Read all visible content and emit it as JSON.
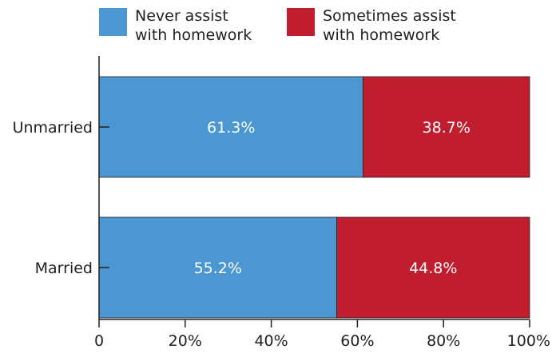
{
  "chart_data": {
    "type": "bar",
    "orientation": "horizontal",
    "stacked": true,
    "categories": [
      "Unmarried",
      "Married"
    ],
    "series": [
      {
        "name": "Never assist with homework",
        "name_lines": [
          "Never assist",
          "with homework"
        ],
        "color": "#4a97d1",
        "values": [
          61.3,
          55.2
        ],
        "labels": [
          "61.3%",
          "55.2%"
        ]
      },
      {
        "name": "Sometimes assist with homework",
        "name_lines": [
          "Sometimes assist",
          "with homework"
        ],
        "color": "#c01d2e",
        "values": [
          38.7,
          44.8
        ],
        "labels": [
          "38.7%",
          "44.8%"
        ]
      }
    ],
    "xlim": [
      0,
      100
    ],
    "xticks": [
      0,
      20,
      40,
      60,
      80,
      100
    ],
    "xtick_labels": [
      "0",
      "20%",
      "40%",
      "60%",
      "80%",
      "100%"
    ],
    "grid": false,
    "legend_position": "top",
    "title": "",
    "xlabel": "",
    "ylabel": ""
  }
}
